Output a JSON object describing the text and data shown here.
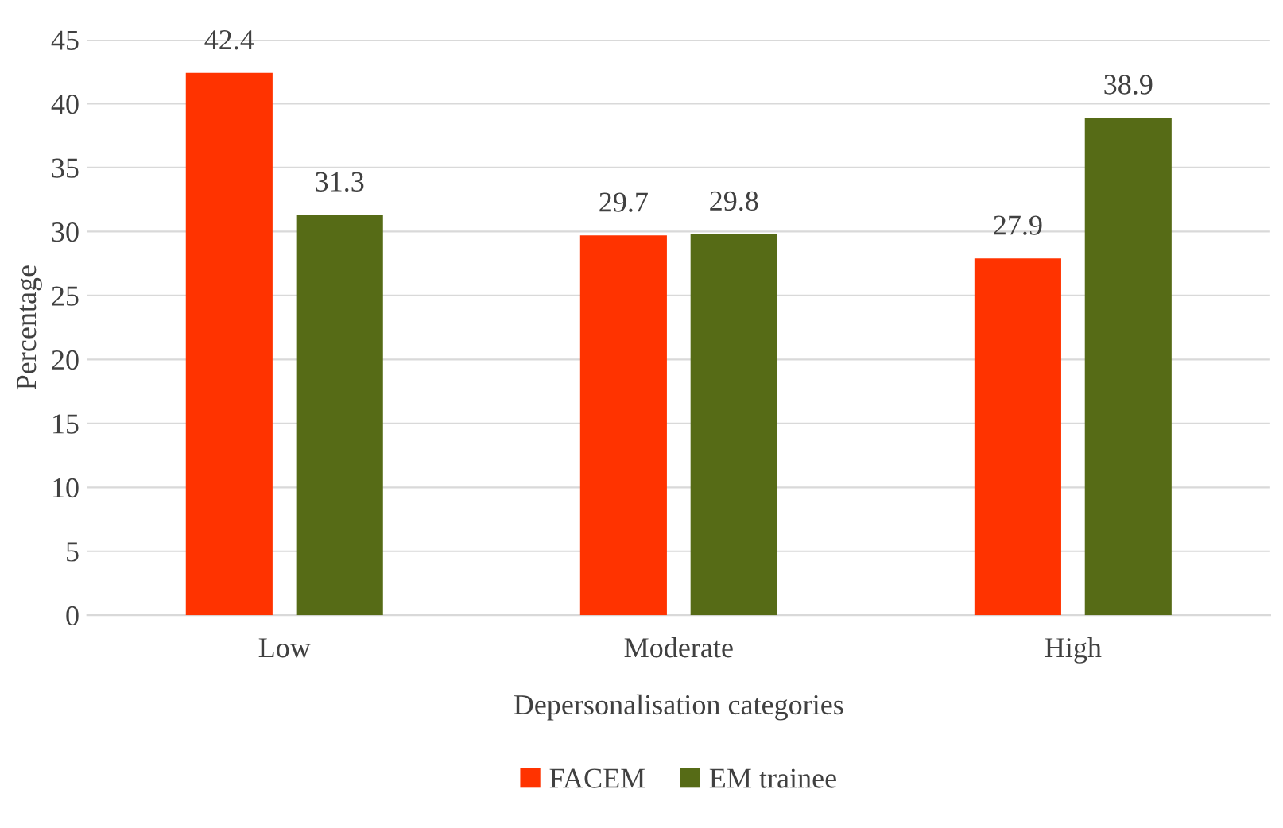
{
  "chart_data": {
    "type": "bar",
    "xlabel": "Depersonalisation categories",
    "ylabel": "Percentage",
    "categories": [
      "Low",
      "Moderate",
      "High"
    ],
    "series": [
      {
        "name": "FACEM",
        "color": "#ff3300",
        "values": [
          42.4,
          29.7,
          27.9
        ]
      },
      {
        "name": "EM trainee",
        "color": "#566b16",
        "values": [
          31.3,
          29.8,
          38.9
        ]
      }
    ],
    "ylim": [
      0,
      45
    ],
    "yticks": [
      0,
      5,
      10,
      15,
      20,
      25,
      30,
      35,
      40,
      45
    ],
    "grid": "y",
    "legend": "bottom",
    "data_labels": true
  }
}
